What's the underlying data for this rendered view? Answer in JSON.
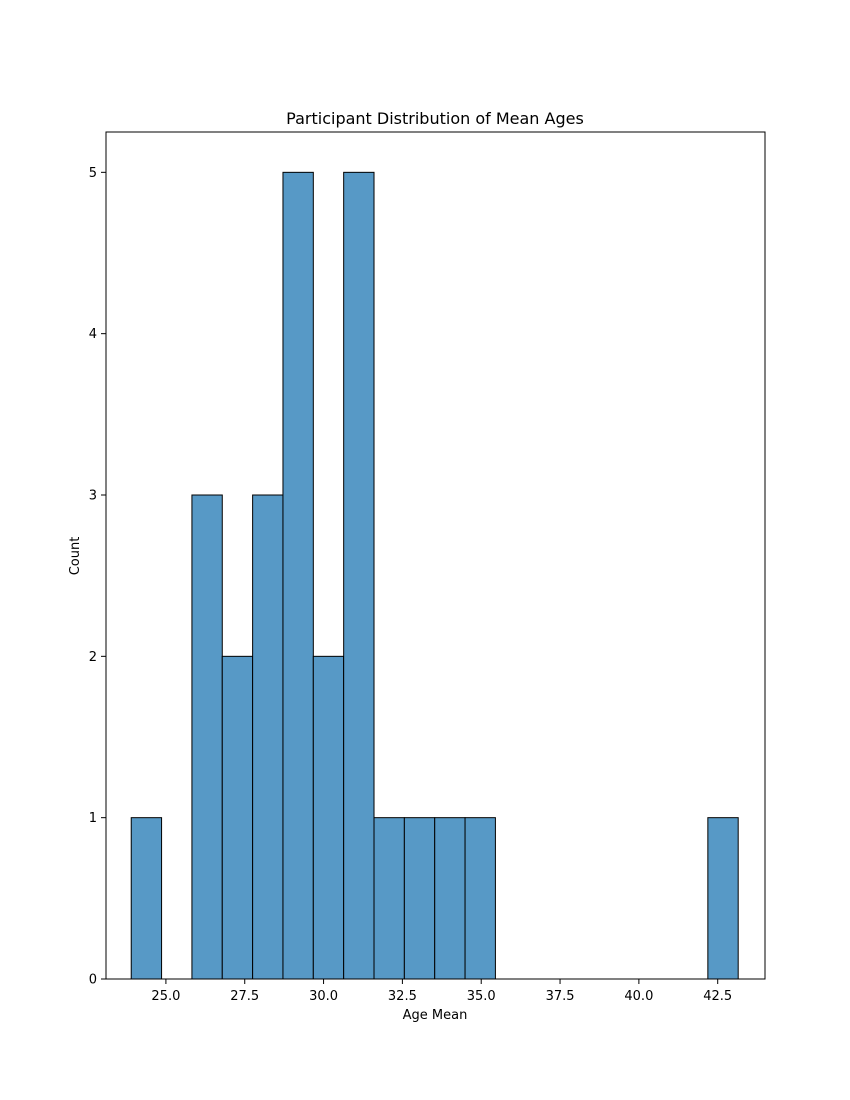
{
  "chart_data": {
    "type": "bar",
    "subtype": "histogram",
    "title": "Participant Distribution of Mean Ages",
    "xlabel": "Age Mean",
    "ylabel": "Count",
    "xlim": [
      23.1,
      44.0
    ],
    "ylim": [
      0,
      5.25
    ],
    "x_ticks": [
      "25.0",
      "27.5",
      "30.0",
      "32.5",
      "35.0",
      "37.5",
      "40.0",
      "42.5"
    ],
    "y_ticks": [
      "0",
      "1",
      "2",
      "3",
      "4",
      "5"
    ],
    "bin_start": 23.9,
    "bin_width": 0.9625,
    "counts": [
      1,
      0,
      3,
      2,
      3,
      5,
      2,
      5,
      1,
      1,
      1,
      1,
      0,
      0,
      0,
      0,
      0,
      0,
      0,
      1
    ],
    "bar_color": "#5799c6",
    "edge_color": "#000000",
    "grid": false,
    "legend": "none"
  }
}
